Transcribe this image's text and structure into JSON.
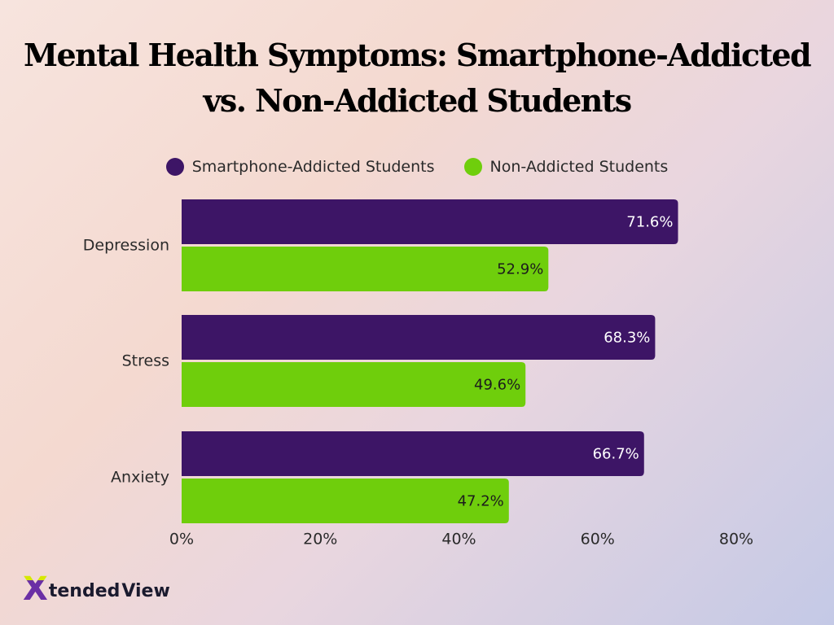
{
  "title_lines": [
    "Mental Health Symptoms: Smartphone-Addicted",
    "vs. Non-Addicted Students"
  ],
  "legend": [
    {
      "label": "Smartphone-Addicted Students",
      "color": "#3d1566"
    },
    {
      "label": "Non-Addicted Students",
      "color": "#6fce0c"
    }
  ],
  "logo": {
    "mark": "X",
    "word1": "tended",
    "word2": "View"
  },
  "chart_data": {
    "type": "bar",
    "orientation": "horizontal",
    "title": "Mental Health Symptoms: Smartphone-Addicted vs. Non-Addicted Students",
    "categories": [
      "Depression",
      "Stress",
      "Anxiety"
    ],
    "series": [
      {
        "name": "Smartphone-Addicted Students",
        "color": "#3d1566",
        "values": [
          71.6,
          68.3,
          66.7
        ],
        "labels": [
          "71.6%",
          "68.3%",
          "66.7%"
        ]
      },
      {
        "name": "Non-Addicted Students",
        "color": "#6fce0c",
        "values": [
          52.9,
          49.6,
          47.2
        ],
        "labels": [
          "52.9%",
          "49.6%",
          "47.2%"
        ]
      }
    ],
    "xlim": [
      0,
      80
    ],
    "xticks": [
      0,
      20,
      40,
      60,
      80
    ],
    "xtick_labels": [
      "0%",
      "20%",
      "40%",
      "60%",
      "80%"
    ],
    "grid": false,
    "legend_position": "top"
  }
}
